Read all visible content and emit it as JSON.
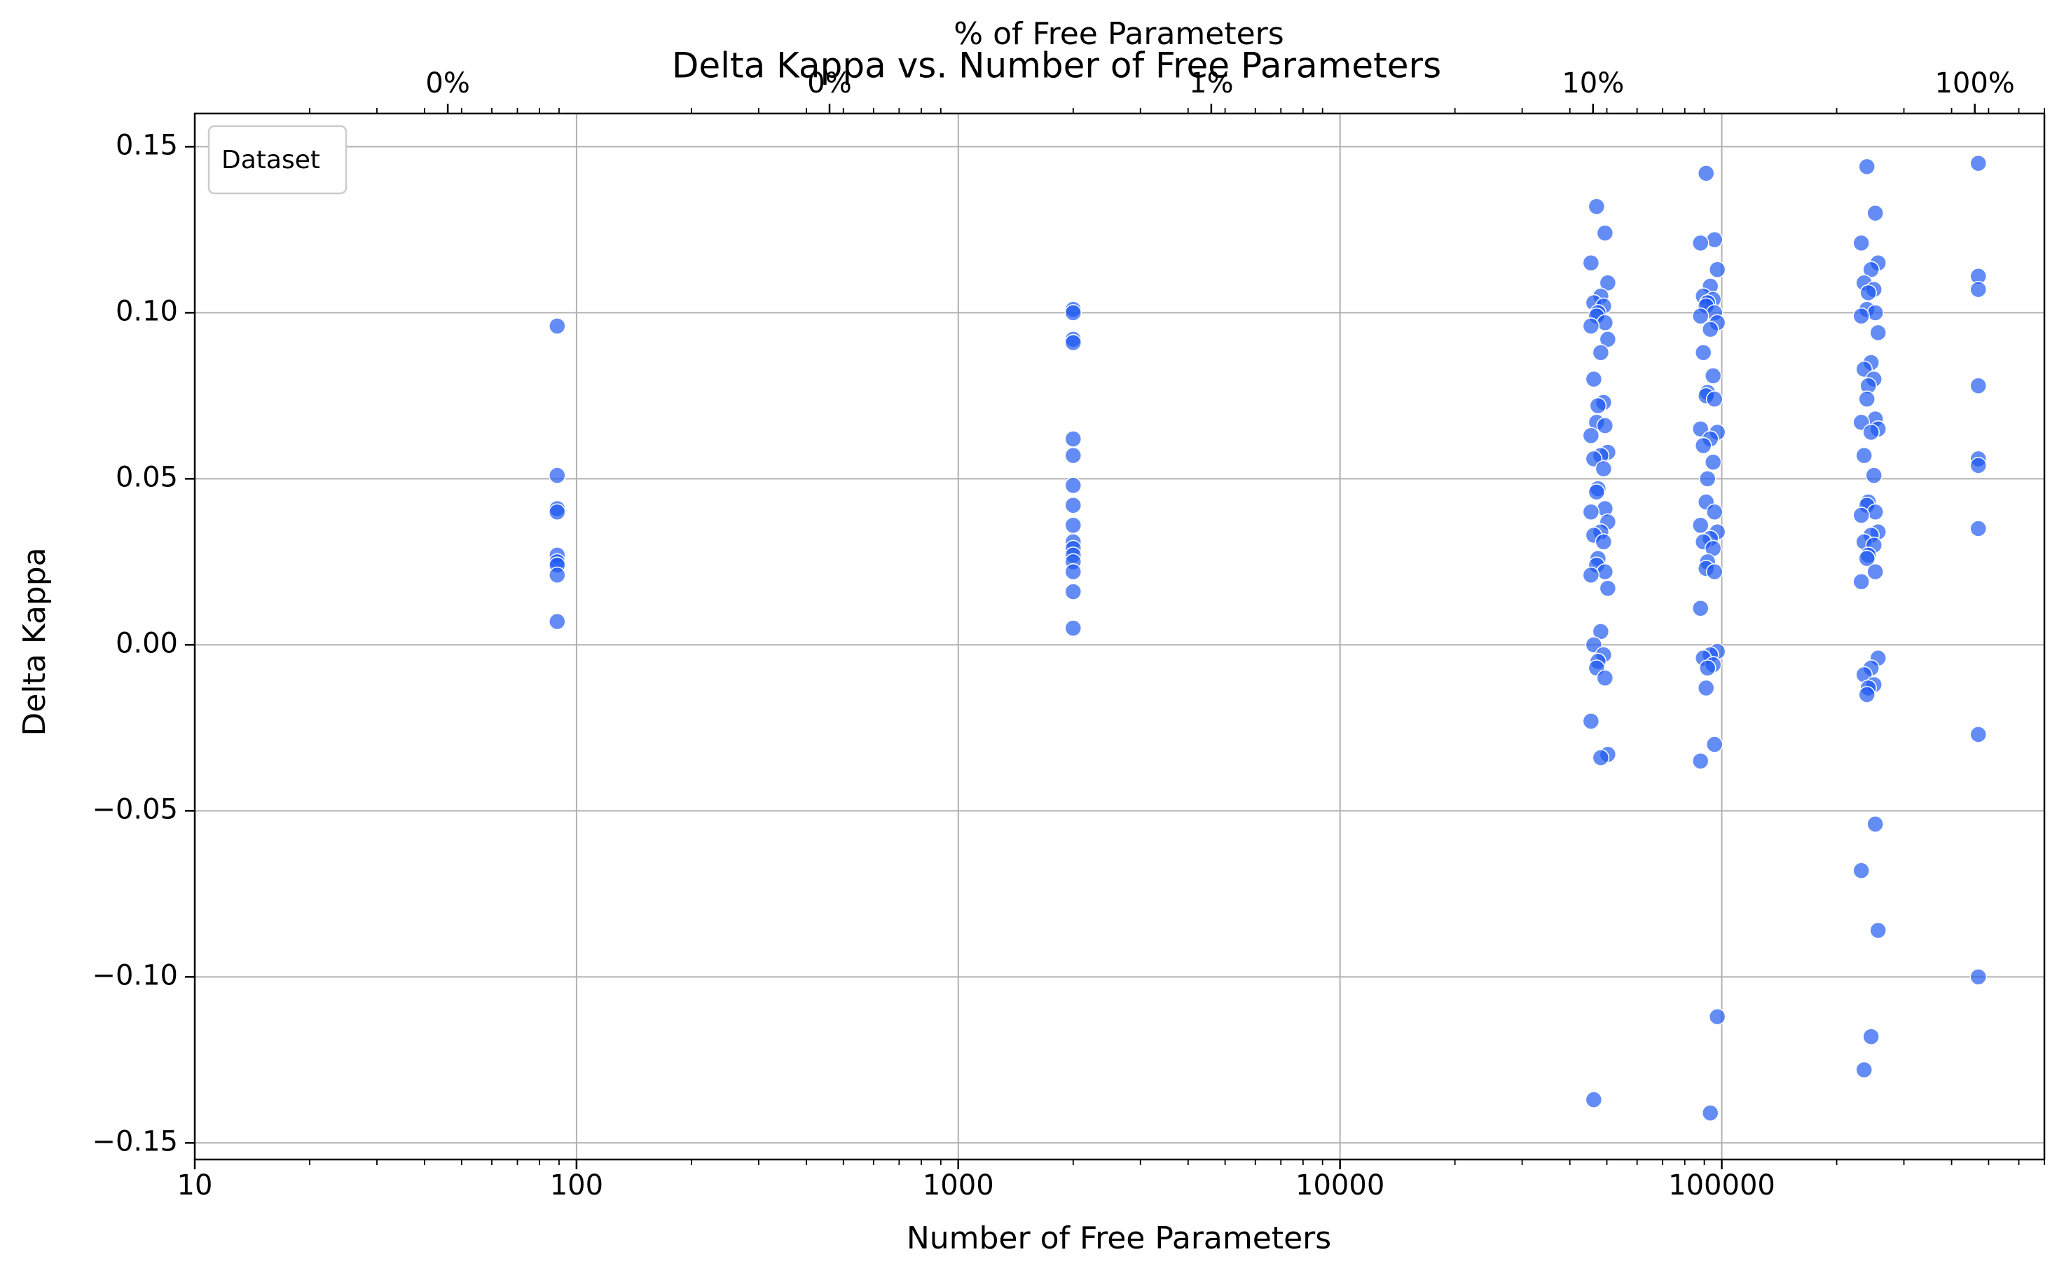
{
  "chart_data": {
    "type": "scatter",
    "title": "Delta Kappa vs. Number of Free Parameters",
    "xlabel": "Number of Free Parameters",
    "ylabel": "Delta Kappa",
    "top_xlabel": "% of Free Parameters",
    "xscale": "log",
    "xlim": [
      10,
      700000
    ],
    "ylim": [
      -0.155,
      0.16
    ],
    "grid": true,
    "point_color": "#1a56f0",
    "legend": {
      "title": "Dataset",
      "placement": "top-left"
    },
    "x_tick_labels": [
      {
        "value": 10,
        "label": "10"
      },
      {
        "value": 100,
        "label": "100"
      },
      {
        "value": 1000,
        "label": "1000"
      },
      {
        "value": 10000,
        "label": "10000"
      },
      {
        "value": 100000,
        "label": "100000"
      }
    ],
    "y_tick_labels": [
      {
        "value": 0.15,
        "label": "0.15"
      },
      {
        "value": 0.1,
        "label": "0.10"
      },
      {
        "value": 0.05,
        "label": "0.05"
      },
      {
        "value": 0.0,
        "label": "0.00"
      },
      {
        "value": -0.05,
        "label": "−0.05"
      },
      {
        "value": -0.1,
        "label": "−0.10"
      },
      {
        "value": -0.15,
        "label": "−0.15"
      }
    ],
    "top_tick_labels": [
      {
        "value": 46,
        "label": "0%"
      },
      {
        "value": 460,
        "label": "0%"
      },
      {
        "value": 4600,
        "label": "1%"
      },
      {
        "value": 46000,
        "label": "10%"
      },
      {
        "value": 460000,
        "label": "100%"
      }
    ],
    "series": [
      {
        "x": 89,
        "y": [
          0.096,
          0.051,
          0.041,
          0.04,
          0.027,
          0.025,
          0.024,
          0.021,
          0.007
        ]
      },
      {
        "x": 2000,
        "y": [
          0.101,
          0.1,
          0.092,
          0.091,
          0.062,
          0.057,
          0.048,
          0.042,
          0.036,
          0.031,
          0.029,
          0.027,
          0.025,
          0.022,
          0.016,
          0.005
        ]
      },
      {
        "x": 47000,
        "y": [
          0.132,
          0.124,
          0.115,
          0.109,
          0.105,
          0.103,
          0.102,
          0.1,
          0.099,
          0.097,
          0.096,
          0.092,
          0.088,
          0.08,
          0.073,
          0.072,
          0.067,
          0.066,
          0.063,
          0.058,
          0.057,
          0.056,
          0.053,
          0.047,
          0.046,
          0.041,
          0.04,
          0.037,
          0.034,
          0.033,
          0.031,
          0.026,
          0.024,
          0.022,
          0.021,
          0.017,
          0.004,
          0.0,
          -0.003,
          -0.005,
          -0.007,
          -0.01,
          -0.023,
          -0.033,
          -0.034,
          -0.137
        ]
      },
      {
        "x": 91000,
        "y": [
          0.142,
          0.122,
          0.121,
          0.113,
          0.108,
          0.105,
          0.104,
          0.103,
          0.102,
          0.1,
          0.099,
          0.097,
          0.095,
          0.088,
          0.081,
          0.076,
          0.075,
          0.074,
          0.065,
          0.064,
          0.062,
          0.06,
          0.055,
          0.05,
          0.043,
          0.04,
          0.036,
          0.034,
          0.032,
          0.031,
          0.029,
          0.025,
          0.023,
          0.022,
          0.011,
          -0.002,
          -0.003,
          -0.004,
          -0.006,
          -0.007,
          -0.013,
          -0.03,
          -0.035,
          -0.112,
          -0.141
        ]
      },
      {
        "x": 240000,
        "y": [
          0.144,
          0.13,
          0.121,
          0.115,
          0.113,
          0.109,
          0.107,
          0.106,
          0.101,
          0.1,
          0.099,
          0.094,
          0.085,
          0.083,
          0.08,
          0.078,
          0.074,
          0.068,
          0.067,
          0.065,
          0.064,
          0.057,
          0.051,
          0.043,
          0.042,
          0.04,
          0.039,
          0.034,
          0.033,
          0.031,
          0.03,
          0.027,
          0.026,
          0.022,
          0.019,
          -0.004,
          -0.007,
          -0.009,
          -0.012,
          -0.013,
          -0.015,
          -0.054,
          -0.068,
          -0.086,
          -0.118,
          -0.128
        ]
      },
      {
        "x": 470000,
        "y": [
          0.145,
          0.111,
          0.107,
          0.078,
          0.056,
          0.054,
          0.035,
          -0.027,
          -0.1
        ]
      }
    ]
  }
}
